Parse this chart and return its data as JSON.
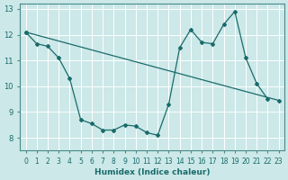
{
  "xlabel": "Humidex (Indice chaleur)",
  "bg_color": "#cce8e8",
  "grid_color": "#ffffff",
  "line_color": "#1a6b6b",
  "spine_color": "#4a8a8a",
  "xlim": [
    -0.5,
    23.5
  ],
  "ylim": [
    7.5,
    13.2
  ],
  "xticks": [
    0,
    1,
    2,
    3,
    4,
    5,
    6,
    7,
    8,
    9,
    10,
    11,
    12,
    13,
    14,
    15,
    16,
    17,
    18,
    19,
    20,
    21,
    22,
    23
  ],
  "yticks": [
    8,
    9,
    10,
    11,
    12,
    13
  ],
  "line1_x": [
    0,
    1,
    2,
    3,
    4,
    5,
    6,
    7,
    8,
    9,
    10,
    11,
    12,
    13,
    14,
    15,
    16,
    17,
    18,
    19,
    20,
    21,
    22
  ],
  "line1_y": [
    12.1,
    11.65,
    11.55,
    11.1,
    10.3,
    8.7,
    8.55,
    8.3,
    8.3,
    8.5,
    8.45,
    8.2,
    8.1,
    9.3,
    11.5,
    12.2,
    11.7,
    11.65,
    12.4,
    12.9,
    11.1,
    10.1,
    9.5
  ]
}
